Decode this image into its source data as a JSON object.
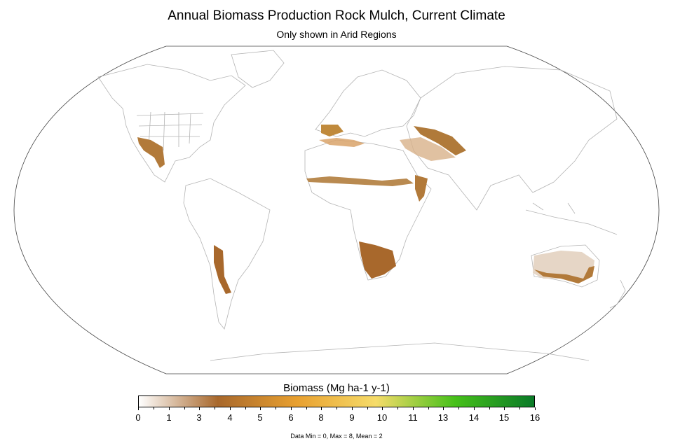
{
  "title": "Annual Biomass Production Rock Mulch, Current Climate",
  "subtitle": "Only shown in Arid Regions",
  "legend": {
    "title": "Biomass (Mg ha-1 y-1)",
    "tick_labels": [
      "0",
      "1",
      "3",
      "4",
      "5",
      "6",
      "8",
      "9",
      "10",
      "11",
      "13",
      "14",
      "15",
      "16"
    ],
    "colors": [
      "#ffffff",
      "#a8682c",
      "#e8a030",
      "#f6dc6a",
      "#46c01a",
      "#0a7a28"
    ]
  },
  "stats": "Data Min = 0, Max = 8, Mean = 2",
  "map": {
    "projection": "Robinson",
    "arid_regions": [
      "southwestern-us-mexico",
      "mediterranean",
      "sahel",
      "arabian-peninsula",
      "middle-east-central-asia",
      "horn-of-africa",
      "southwest-africa",
      "andes-argentina",
      "australia"
    ]
  }
}
